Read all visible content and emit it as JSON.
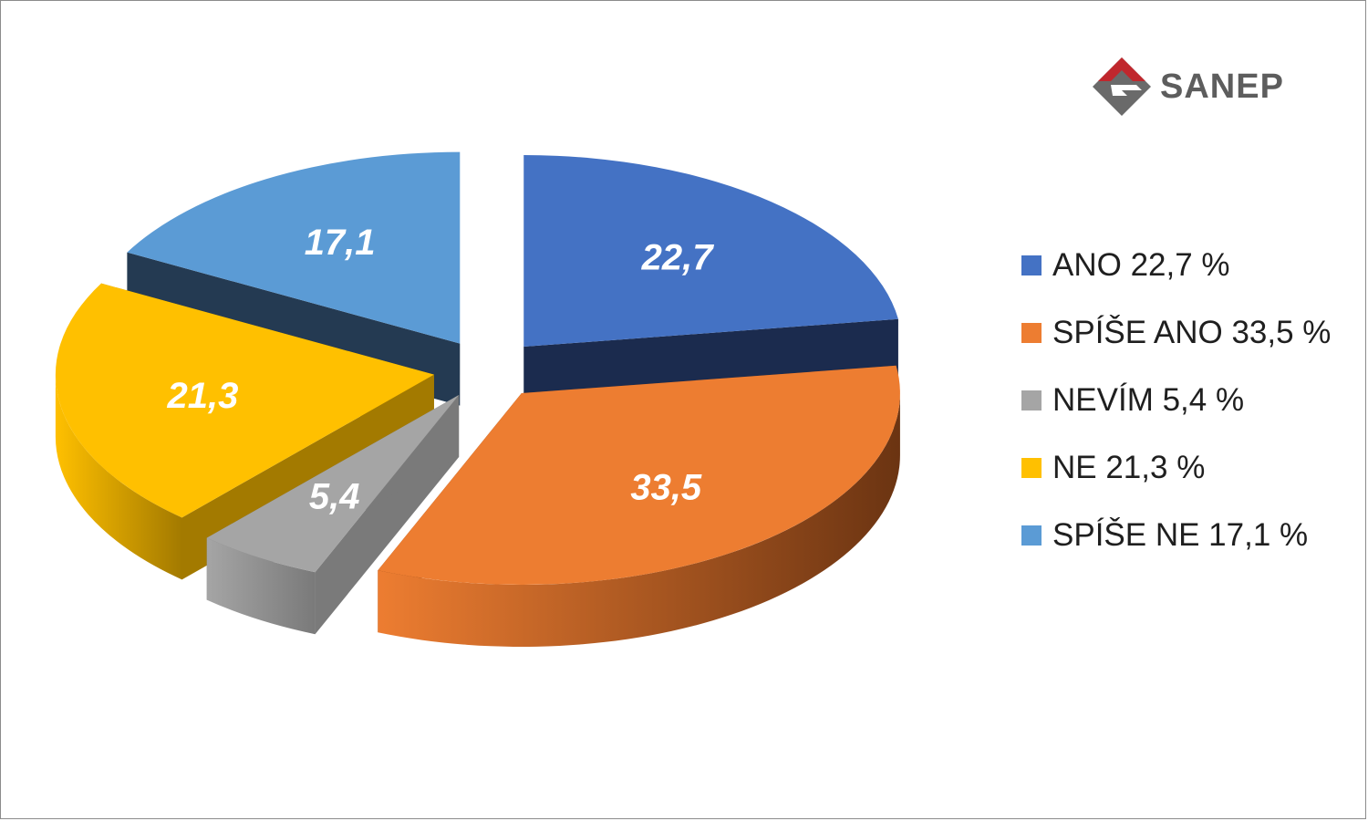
{
  "logo": {
    "text": "SANEP",
    "primary_color": "#c0272d",
    "secondary_color": "#5d5d5d"
  },
  "chart_data": {
    "type": "pie",
    "title": "",
    "start_angle_deg": 0,
    "direction": "clockwise",
    "legend_position": "right",
    "slices": [
      {
        "name": "ANO",
        "value": 22.7,
        "label": "22,7",
        "legend": "ANO 22,7 %",
        "color": "#4472c4",
        "dark": "#1b2b4e"
      },
      {
        "name": "SPÍŠE ANO",
        "value": 33.5,
        "label": "33,5",
        "legend": "SPÍŠE ANO 33,5 %",
        "color": "#ed7d31",
        "dark": "#6b3412"
      },
      {
        "name": "NEVÍM",
        "value": 5.4,
        "label": "5,4",
        "legend": "NEVÍM 5,4 %",
        "color": "#a5a5a5",
        "dark": "#7a7a7a"
      },
      {
        "name": "NE",
        "value": 21.3,
        "label": "21,3",
        "legend": "NE 21,3 %",
        "color": "#ffc000",
        "dark": "#a37a00"
      },
      {
        "name": "SPÍŠE NE",
        "value": 17.1,
        "label": "17,1",
        "legend": "SPÍŠE NE 17,1 %",
        "color": "#5b9bd5",
        "dark": "#243a52"
      }
    ]
  }
}
